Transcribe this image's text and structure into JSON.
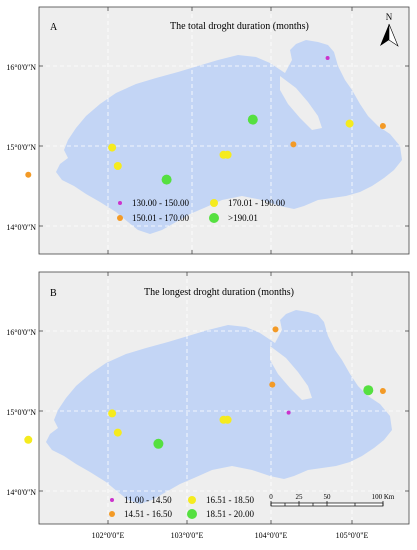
{
  "colors": {
    "land": "#c3d5f5",
    "panel_bg": "#eeeeee",
    "grid": "#ffffff",
    "class_magenta": "#cc33cc",
    "class_orange": "#f39a26",
    "class_yellow": "#f5eb1e",
    "class_green": "#55e040"
  },
  "north_arrow": {
    "label": "N",
    "icon": "north-arrow-icon"
  },
  "lat_labels": [
    "16°0'0\"N",
    "15°0'0\"N",
    "14°0'0\"N"
  ],
  "lon_labels": [
    "102°0'0\"E",
    "103°0'0\"E",
    "104°0'0\"E",
    "105°0'0\"E"
  ],
  "panel_a": {
    "letter": "A",
    "title": "The total droght duration (months)",
    "legend": [
      {
        "label": "130.00 - 150.00",
        "color": "#cc33cc",
        "size": 1
      },
      {
        "label": "150.01 - 170.00",
        "color": "#f39a26",
        "size": 2
      },
      {
        "label": "170.01 - 190.00",
        "color": "#f5eb1e",
        "size": 3
      },
      {
        "label": ">190.01",
        "color": "#55e040",
        "size": 4
      }
    ],
    "stations": [
      {
        "lon": 104.7,
        "lat": 16.1,
        "class": 0
      },
      {
        "lon": 104.28,
        "lat": 15.02,
        "class": 1
      },
      {
        "lon": 105.38,
        "lat": 15.25,
        "class": 1
      },
      {
        "lon": 101.02,
        "lat": 14.64,
        "class": 1
      },
      {
        "lon": 102.05,
        "lat": 14.98,
        "class": 2
      },
      {
        "lon": 102.12,
        "lat": 14.75,
        "class": 2
      },
      {
        "lon": 103.42,
        "lat": 14.89,
        "class": 2
      },
      {
        "lon": 103.47,
        "lat": 14.89,
        "class": 2
      },
      {
        "lon": 104.97,
        "lat": 15.28,
        "class": 2
      },
      {
        "lon": 103.78,
        "lat": 15.33,
        "class": 3
      },
      {
        "lon": 102.72,
        "lat": 14.58,
        "class": 3
      }
    ]
  },
  "panel_b": {
    "letter": "B",
    "title": "The  longest droght duration (months)",
    "legend": [
      {
        "label": "11.00 - 14.50",
        "color": "#cc33cc",
        "size": 1
      },
      {
        "label": "14.51 - 16.50",
        "color": "#f39a26",
        "size": 2
      },
      {
        "label": "16.51 - 18.50",
        "color": "#f5eb1e",
        "size": 3
      },
      {
        "label": "18.51 - 20.00",
        "color": "#55e040",
        "size": 4
      }
    ],
    "stations": [
      {
        "lon": 104.22,
        "lat": 14.98,
        "class": 0
      },
      {
        "lon": 104.06,
        "lat": 16.02,
        "class": 1
      },
      {
        "lon": 104.02,
        "lat": 15.33,
        "class": 1
      },
      {
        "lon": 105.38,
        "lat": 15.25,
        "class": 1
      },
      {
        "lon": 101.02,
        "lat": 14.64,
        "class": 2
      },
      {
        "lon": 102.05,
        "lat": 14.97,
        "class": 2
      },
      {
        "lon": 102.12,
        "lat": 14.73,
        "class": 2
      },
      {
        "lon": 103.42,
        "lat": 14.89,
        "class": 2
      },
      {
        "lon": 103.47,
        "lat": 14.89,
        "class": 2
      },
      {
        "lon": 105.2,
        "lat": 15.26,
        "class": 3
      },
      {
        "lon": 102.62,
        "lat": 14.59,
        "class": 3
      }
    ]
  },
  "scale_bar": {
    "ticks": [
      "0",
      "25",
      "50",
      "100 Km"
    ]
  }
}
